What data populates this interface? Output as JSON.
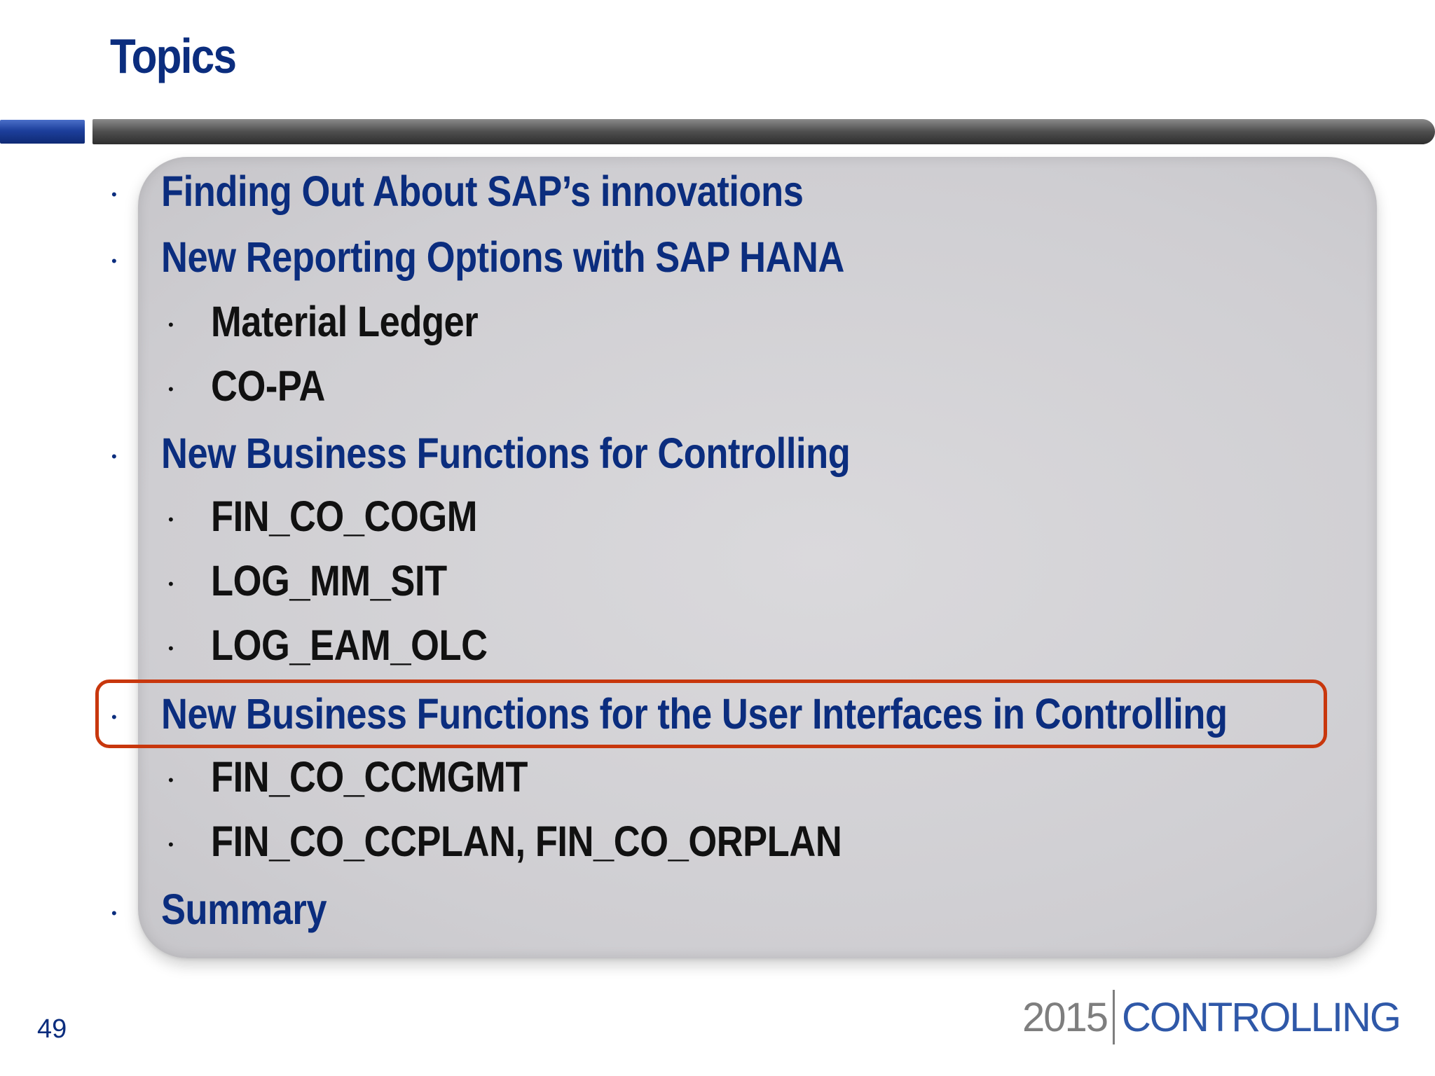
{
  "slide": {
    "title": "Topics",
    "page_number": "49"
  },
  "topics": [
    {
      "label": "Finding Out About SAP’s innovations",
      "level": 1
    },
    {
      "label": "New Reporting Options with SAP HANA",
      "level": 1
    },
    {
      "label": "Material Ledger",
      "level": 2
    },
    {
      "label": "CO-PA",
      "level": 2
    },
    {
      "label": "New Business Functions for Controlling",
      "level": 1
    },
    {
      "label": "FIN_CO_COGM",
      "level": 2
    },
    {
      "label": "LOG_MM_SIT",
      "level": 2
    },
    {
      "label": "LOG_EAM_OLC",
      "level": 2
    },
    {
      "label": "New Business Functions for the User Interfaces in Controlling",
      "level": 1,
      "highlighted": true
    },
    {
      "label": "FIN_CO_CCMGMT",
      "level": 2
    },
    {
      "label": "FIN_CO_CCPLAN, FIN_CO_ORPLAN",
      "level": 2
    },
    {
      "label": "Summary",
      "level": 1
    }
  ],
  "bullet_glyph": "•",
  "footer": {
    "year": "2015",
    "word": "CONTROLLING"
  },
  "colors": {
    "title_blue": "#0b2d7e",
    "highlight_border": "#c8370d",
    "logo_gray": "#7e7e7e",
    "logo_blue": "#2f58a8"
  }
}
